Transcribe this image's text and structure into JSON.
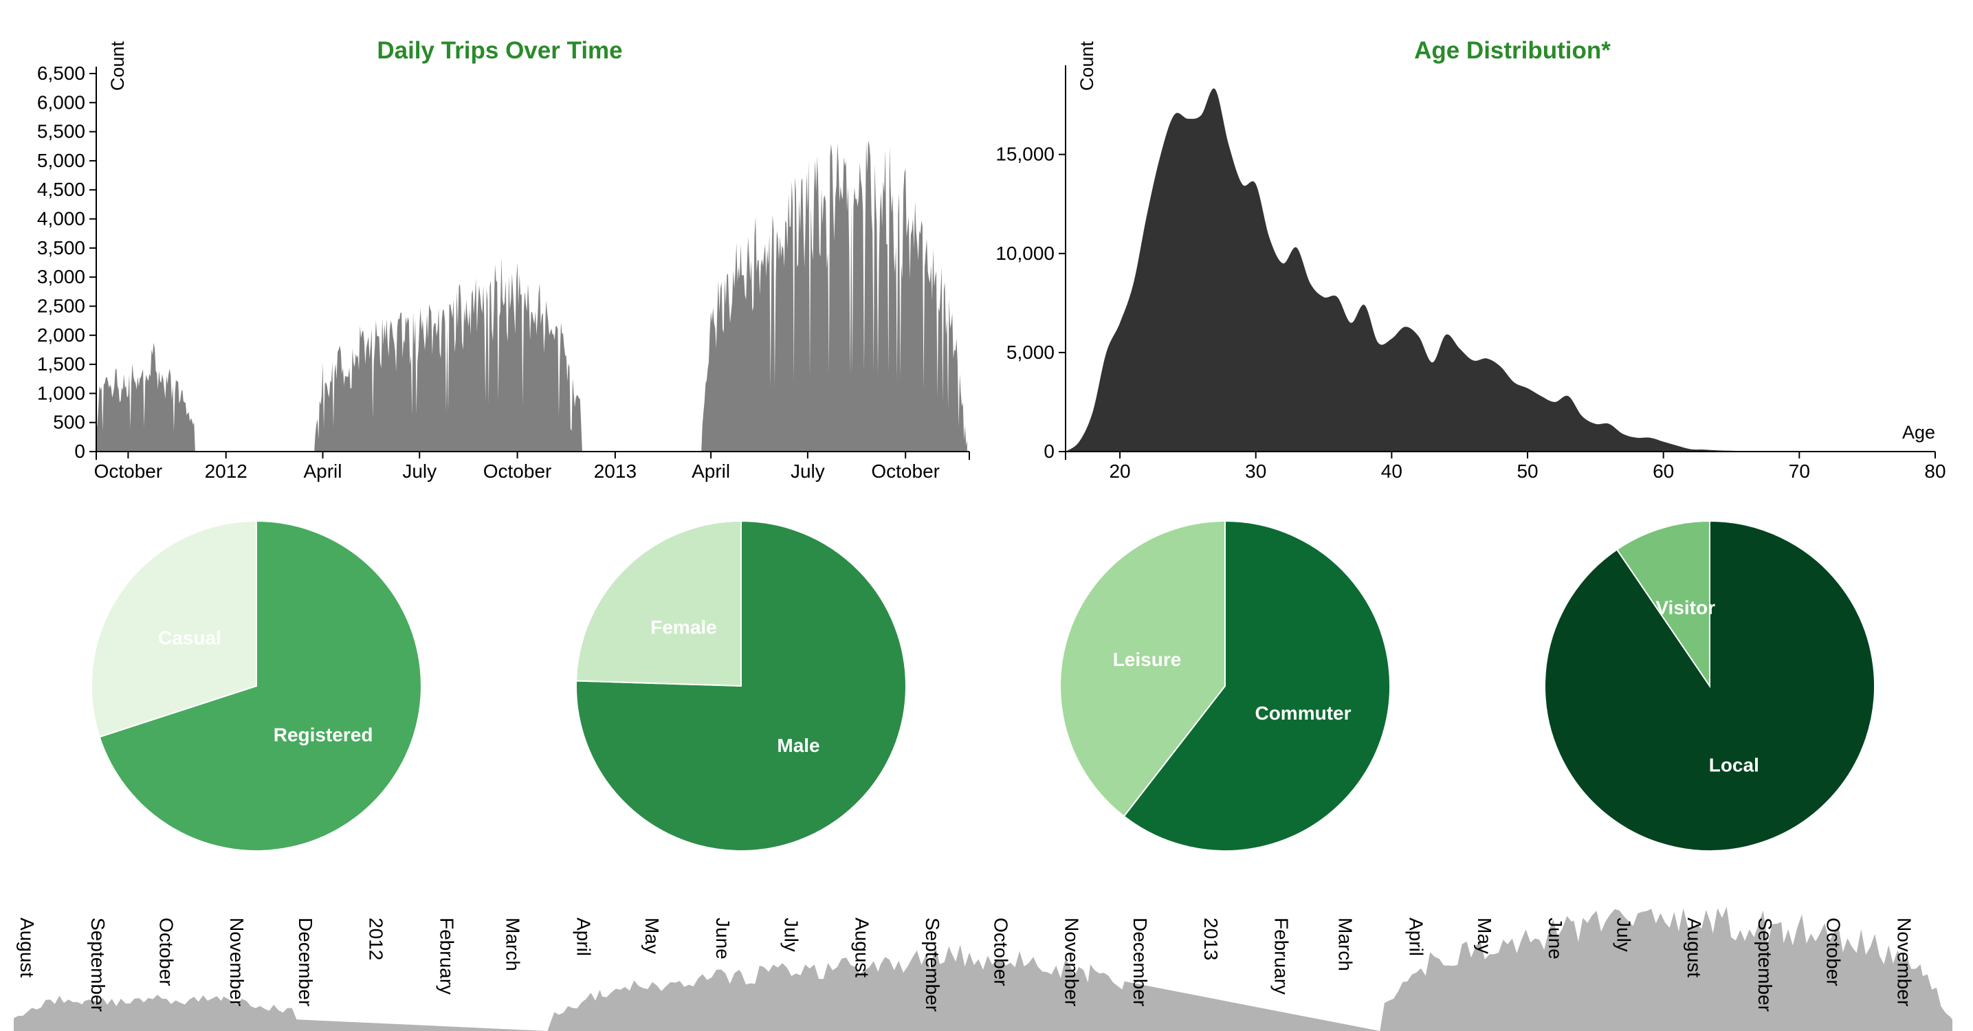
{
  "colors": {
    "title": "#2a8a2a",
    "daily_area": "#808080",
    "age_area": "#333333",
    "brush_area": "#b3b3b3",
    "axis": "#000000",
    "slice_white_border": "#ffffff"
  },
  "chart_data": [
    {
      "id": "daily",
      "type": "area",
      "title": "Daily Trips Over Time",
      "ylabel": "Count",
      "xlabel": "",
      "ylim": [
        0,
        6500
      ],
      "yticks": [
        0,
        500,
        1000,
        1500,
        2000,
        2500,
        3000,
        3500,
        4000,
        4500,
        5000,
        5500,
        6000,
        6500
      ],
      "ytick_labels": [
        "0",
        "500",
        "1,000",
        "1,500",
        "2,000",
        "2,500",
        "3,000",
        "3,500",
        "4,000",
        "4,500",
        "5,000",
        "5,500",
        "6,000",
        "6,500"
      ],
      "xlim": [
        "2011-09-01",
        "2013-11-30"
      ],
      "xticks": [
        {
          "date": "2011-10-01",
          "label": "October"
        },
        {
          "date": "2012-01-01",
          "label": "2012"
        },
        {
          "date": "2012-04-01",
          "label": "April"
        },
        {
          "date": "2012-07-01",
          "label": "July"
        },
        {
          "date": "2012-10-01",
          "label": "October"
        },
        {
          "date": "2013-01-01",
          "label": "2013"
        },
        {
          "date": "2013-04-01",
          "label": "April"
        },
        {
          "date": "2013-07-01",
          "label": "July"
        },
        {
          "date": "2013-10-01",
          "label": "October"
        }
      ],
      "grid": false,
      "series": [
        {
          "values": [
            [
              "2011-09-01",
              500
            ],
            [
              "2011-09-05",
              1350
            ],
            [
              "2011-09-10",
              1500
            ],
            [
              "2011-09-15",
              1400
            ],
            [
              "2011-09-20",
              1550
            ],
            [
              "2011-09-25",
              1300
            ],
            [
              "2011-09-30",
              1500
            ],
            [
              "2011-10-05",
              1550
            ],
            [
              "2011-10-10",
              1400
            ],
            [
              "2011-10-15",
              1650
            ],
            [
              "2011-10-20",
              1550
            ],
            [
              "2011-10-25",
              2000
            ],
            [
              "2011-10-30",
              1450
            ],
            [
              "2011-11-05",
              1400
            ],
            [
              "2011-11-10",
              1500
            ],
            [
              "2011-11-15",
              1250
            ],
            [
              "2011-11-20",
              1300
            ],
            [
              "2011-11-25",
              900
            ],
            [
              "2011-11-30",
              550
            ],
            [
              "2011-12-02",
              500
            ],
            [
              "2011-12-03",
              0
            ],
            [
              "2012-03-24",
              0
            ],
            [
              "2012-03-25",
              300
            ],
            [
              "2012-04-01",
              1550
            ],
            [
              "2012-04-08",
              1400
            ],
            [
              "2012-04-15",
              1950
            ],
            [
              "2012-04-22",
              1700
            ],
            [
              "2012-05-01",
              1800
            ],
            [
              "2012-05-08",
              2350
            ],
            [
              "2012-05-15",
              2150
            ],
            [
              "2012-05-22",
              2300
            ],
            [
              "2012-06-01",
              2450
            ],
            [
              "2012-06-08",
              2200
            ],
            [
              "2012-06-15",
              2500
            ],
            [
              "2012-06-22",
              2350
            ],
            [
              "2012-07-01",
              2600
            ],
            [
              "2012-07-08",
              2550
            ],
            [
              "2012-07-15",
              2700
            ],
            [
              "2012-07-22",
              2600
            ],
            [
              "2012-08-01",
              2750
            ],
            [
              "2012-08-08",
              2900
            ],
            [
              "2012-08-15",
              2850
            ],
            [
              "2012-08-22",
              3000
            ],
            [
              "2012-09-01",
              3300
            ],
            [
              "2012-09-08",
              3100
            ],
            [
              "2012-09-15",
              3550
            ],
            [
              "2012-09-22",
              3100
            ],
            [
              "2012-10-01",
              3300
            ],
            [
              "2012-10-08",
              3100
            ],
            [
              "2012-10-15",
              2800
            ],
            [
              "2012-10-22",
              2900
            ],
            [
              "2012-11-01",
              2600
            ],
            [
              "2012-11-08",
              2400
            ],
            [
              "2012-11-15",
              2100
            ],
            [
              "2012-11-22",
              1300
            ],
            [
              "2012-11-29",
              900
            ],
            [
              "2012-12-01",
              0
            ],
            [
              "2013-03-23",
              0
            ],
            [
              "2013-03-24",
              500
            ],
            [
              "2013-04-01",
              2500
            ],
            [
              "2013-04-08",
              3000
            ],
            [
              "2013-04-15",
              3300
            ],
            [
              "2013-04-22",
              3500
            ],
            [
              "2013-05-01",
              4100
            ],
            [
              "2013-05-08",
              3700
            ],
            [
              "2013-05-15",
              4200
            ],
            [
              "2013-05-22",
              4000
            ],
            [
              "2013-06-01",
              4550
            ],
            [
              "2013-06-08",
              4200
            ],
            [
              "2013-06-15",
              4650
            ],
            [
              "2013-06-22",
              4900
            ],
            [
              "2013-07-01",
              5000
            ],
            [
              "2013-07-08",
              5250
            ],
            [
              "2013-07-15",
              4800
            ],
            [
              "2013-07-22",
              5350
            ],
            [
              "2013-08-01",
              5300
            ],
            [
              "2013-08-08",
              5200
            ],
            [
              "2013-08-15",
              5150
            ],
            [
              "2013-08-22",
              5400
            ],
            [
              "2013-09-01",
              5450
            ],
            [
              "2013-09-08",
              5000
            ],
            [
              "2013-09-15",
              5350
            ],
            [
              "2013-09-22",
              4800
            ],
            [
              "2013-10-01",
              4900
            ],
            [
              "2013-10-08",
              4700
            ],
            [
              "2013-10-15",
              4300
            ],
            [
              "2013-10-22",
              4000
            ],
            [
              "2013-11-01",
              3600
            ],
            [
              "2013-11-08",
              3000
            ],
            [
              "2013-11-15",
              2500
            ],
            [
              "2013-11-22",
              1300
            ],
            [
              "2013-11-28",
              200
            ]
          ]
        }
      ]
    },
    {
      "id": "age",
      "type": "area",
      "title": "Age Distribution*",
      "ylabel": "Count",
      "xlabel": "Age",
      "xlim": [
        16,
        80
      ],
      "xticks": [
        20,
        30,
        40,
        50,
        60,
        70,
        80
      ],
      "xtick_labels": [
        "20",
        "30",
        "40",
        "50",
        "60",
        "70",
        "80"
      ],
      "ylim": [
        0,
        19500
      ],
      "yticks": [
        0,
        5000,
        10000,
        15000
      ],
      "ytick_labels": [
        "0",
        "5,000",
        "10,000",
        "15,000"
      ],
      "grid": false,
      "series": [
        {
          "x": [
            16,
            17,
            18,
            19,
            20,
            21,
            22,
            23,
            24,
            25,
            26,
            27,
            28,
            29,
            30,
            31,
            32,
            33,
            34,
            35,
            36,
            37,
            38,
            39,
            40,
            41,
            42,
            43,
            44,
            45,
            46,
            47,
            48,
            49,
            50,
            51,
            52,
            53,
            54,
            55,
            56,
            57,
            58,
            59,
            60,
            61,
            62,
            63,
            64,
            65,
            66,
            67,
            68,
            69,
            70,
            71,
            72,
            73,
            74,
            75,
            80
          ],
          "values": [
            0,
            500,
            2000,
            5000,
            6500,
            8500,
            12000,
            15000,
            17000,
            16800,
            17000,
            18300,
            15500,
            13500,
            13500,
            10800,
            9500,
            10300,
            8500,
            7800,
            7800,
            6500,
            7400,
            5500,
            5700,
            6300,
            5800,
            4500,
            5900,
            5200,
            4600,
            4700,
            4300,
            3500,
            3200,
            2800,
            2500,
            2800,
            1800,
            1400,
            1400,
            900,
            700,
            700,
            500,
            300,
            120,
            100,
            60,
            40,
            20,
            10,
            0,
            0,
            0,
            0,
            0,
            0,
            0,
            0,
            0
          ]
        }
      ]
    },
    {
      "id": "pie-user-type",
      "type": "pie",
      "slices": [
        {
          "label": "Registered",
          "value": 70,
          "color": "#48aa5e"
        },
        {
          "label": "Casual",
          "value": 30,
          "color": "#e6f5e2"
        }
      ]
    },
    {
      "id": "pie-gender",
      "type": "pie",
      "slices": [
        {
          "label": "Male",
          "value": 75.5,
          "color": "#2b8c48"
        },
        {
          "label": "Female",
          "value": 24.5,
          "color": "#c9e9c4"
        }
      ]
    },
    {
      "id": "pie-purpose",
      "type": "pie",
      "slices": [
        {
          "label": "Commuter",
          "value": 60.5,
          "color": "#0c6b32"
        },
        {
          "label": "Leisure",
          "value": 39.5,
          "color": "#a3d99c"
        }
      ]
    },
    {
      "id": "pie-residency",
      "type": "pie",
      "slices": [
        {
          "label": "Local",
          "value": 90.5,
          "color": "#034320"
        },
        {
          "label": "Visitor",
          "value": 9.5,
          "color": "#78c27a"
        }
      ]
    },
    {
      "id": "brush",
      "type": "area",
      "xlim": [
        "2011-08-01",
        "2013-12-01"
      ],
      "month_labels": [
        "August",
        "September",
        "October",
        "November",
        "December",
        "2012",
        "February",
        "March",
        "April",
        "May",
        "June",
        "July",
        "August",
        "September",
        "October",
        "November",
        "December",
        "2013",
        "February",
        "March",
        "April",
        "May",
        "June",
        "July",
        "August",
        "September",
        "October",
        "November"
      ],
      "series": [
        {
          "values": [
            [
              "2011-08-01",
              400
            ],
            [
              "2011-08-15",
              900
            ],
            [
              "2011-09-01",
              1000
            ],
            [
              "2011-09-15",
              900
            ],
            [
              "2011-10-01",
              1050
            ],
            [
              "2011-10-15",
              950
            ],
            [
              "2011-11-01",
              1000
            ],
            [
              "2011-11-15",
              800
            ],
            [
              "2011-12-01",
              600
            ],
            [
              "2011-12-05",
              0
            ],
            [
              "2012-03-22",
              0
            ],
            [
              "2012-03-25",
              500
            ],
            [
              "2012-04-15",
              1200
            ],
            [
              "2012-05-15",
              1500
            ],
            [
              "2012-06-15",
              1700
            ],
            [
              "2012-07-15",
              1900
            ],
            [
              "2012-08-15",
              2000
            ],
            [
              "2012-09-15",
              2400
            ],
            [
              "2012-10-15",
              2100
            ],
            [
              "2012-11-15",
              1800
            ],
            [
              "2012-11-30",
              1300
            ],
            [
              "2012-12-01",
              0
            ],
            [
              "2013-03-22",
              0
            ],
            [
              "2013-03-24",
              800
            ],
            [
              "2013-04-15",
              2200
            ],
            [
              "2013-05-15",
              2700
            ],
            [
              "2013-06-15",
              3100
            ],
            [
              "2013-07-15",
              3300
            ],
            [
              "2013-08-15",
              3400
            ],
            [
              "2013-09-15",
              3200
            ],
            [
              "2013-10-15",
              2900
            ],
            [
              "2013-11-15",
              1900
            ],
            [
              "2013-11-28",
              300
            ]
          ]
        }
      ]
    }
  ]
}
